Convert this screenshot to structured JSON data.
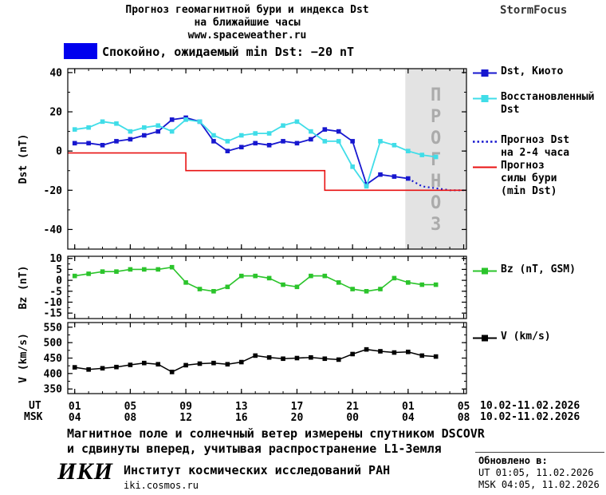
{
  "header": {
    "title_line1": "Прогноз геомагнитной бури и индекса Dst",
    "title_line2": "на ближайшие часы",
    "site_url": "www.spaceweather.ru",
    "brand": "StormFocus"
  },
  "status": {
    "text": "Спокойно, ожидаемый min Dst: −20 nT",
    "swatch_color": "#0000ee"
  },
  "chart_data": [
    {
      "id": "dst",
      "type": "line",
      "ylabel": "Dst (nT)",
      "ylim": [
        -50,
        42
      ],
      "yticks": [
        40,
        20,
        0,
        -20,
        -40
      ],
      "yminor": 10,
      "xlim": [
        0.5,
        29.2
      ],
      "xticks": [
        1,
        5,
        9,
        13,
        17,
        21,
        25,
        29
      ],
      "forecast_region": {
        "x_start": 24.8,
        "x_end": 29.2,
        "label": "ПРОГНОЗ",
        "fill": "#e3e3e3",
        "text_color": "#ababab"
      },
      "series": [
        {
          "name": "Dst, Киото",
          "color": "#1717cf",
          "marker": true,
          "lw": 1.8,
          "x0": 1,
          "dx": 1,
          "values": [
            4,
            4,
            3,
            5,
            6,
            8,
            10,
            16,
            17,
            15,
            5,
            0,
            2,
            4,
            3,
            5,
            4,
            6,
            11,
            10,
            5,
            -17,
            -12,
            -13,
            -14
          ]
        },
        {
          "name": "Восстановленный Dst",
          "color": "#40dde8",
          "marker": true,
          "lw": 1.8,
          "x0": 1,
          "dx": 1,
          "values": [
            11,
            12,
            15,
            14,
            10,
            12,
            13,
            10,
            16,
            15,
            8,
            5,
            8,
            9,
            9,
            13,
            15,
            10,
            5,
            5,
            -8,
            -18,
            5,
            3,
            0,
            -2,
            -3
          ]
        },
        {
          "name": "Прогноз Dst на 2-4 часа",
          "color": "#1717cf",
          "marker": false,
          "lw": 2.2,
          "dash": "2,3.5",
          "x": [
            25,
            26,
            27,
            28,
            29
          ],
          "values": [
            -14,
            -18,
            -19,
            -20,
            -20
          ]
        },
        {
          "name": "Прогноз силы бури (min Dst)",
          "color": "#e81212",
          "marker": false,
          "lw": 1.6,
          "x": [
            0.5,
            9,
            9,
            19,
            19,
            29.2
          ],
          "values": [
            -1,
            -1,
            -10,
            -10,
            -20,
            -20
          ]
        }
      ]
    },
    {
      "id": "bz",
      "type": "line",
      "ylabel": "Bz (nT)",
      "ylim": [
        -17.5,
        11
      ],
      "yticks": [
        10,
        5,
        0,
        -5,
        -10,
        -15
      ],
      "yminor": 2.5,
      "xlim": [
        0.5,
        29.2
      ],
      "xticks": [
        1,
        5,
        9,
        13,
        17,
        21,
        25,
        29
      ],
      "series": [
        {
          "name": "Bz (nT, GSM)",
          "color": "#2bc42b",
          "marker": true,
          "lw": 1.6,
          "x0": 1,
          "dx": 1,
          "values": [
            2,
            3,
            4,
            4,
            5,
            5,
            5,
            6,
            -1,
            -4,
            -5,
            -3,
            2,
            2,
            1,
            -2,
            -3,
            2,
            2,
            -1,
            -4,
            -5,
            -4,
            1,
            -1,
            -2,
            -2
          ]
        }
      ]
    },
    {
      "id": "v",
      "type": "line",
      "ylabel": "V (km/s)",
      "ylim": [
        335,
        565
      ],
      "yticks": [
        550,
        500,
        450,
        400,
        350
      ],
      "yminor": 25,
      "xlim": [
        0.5,
        29.2
      ],
      "xticks": [
        1,
        5,
        9,
        13,
        17,
        21,
        25,
        29
      ],
      "series": [
        {
          "name": "V (km/s)",
          "color": "#000000",
          "marker": true,
          "lw": 1.5,
          "x0": 1,
          "dx": 1,
          "values": [
            420,
            413,
            417,
            421,
            428,
            434,
            430,
            405,
            427,
            432,
            434,
            430,
            437,
            458,
            452,
            448,
            450,
            452,
            448,
            445,
            463,
            478,
            472,
            468,
            470,
            458,
            455
          ]
        }
      ]
    }
  ],
  "x_axis": {
    "ut_label": "UT",
    "msk_label": "MSK",
    "tick_hours": [
      1,
      5,
      9,
      13,
      17,
      21,
      25,
      29
    ],
    "ut_ticks": [
      "01",
      "05",
      "09",
      "13",
      "17",
      "21",
      "01",
      "05"
    ],
    "msk_ticks": [
      "04",
      "08",
      "12",
      "16",
      "20",
      "00",
      "04",
      "08"
    ],
    "date_range": "10.02-11.02.2026"
  },
  "legend": {
    "kyoto": [
      "Dst, Киото"
    ],
    "restored": [
      "Восстановленный",
      "Dst"
    ],
    "forecast_dst": [
      "Прогноз Dst",
      "на 2-4 часа"
    ],
    "storm": [
      "Прогноз",
      "силы бури",
      "(min Dst)"
    ],
    "bz": [
      "Bz (nT, GSM)"
    ],
    "v": [
      "V (km/s)"
    ]
  },
  "notes": {
    "line1": "Магнитное поле и солнечный ветер измерены спутником DSCOVR",
    "line2": "и сдвинуты вперед, учитывая распространение L1-Земля"
  },
  "footer": {
    "logo": "ИКИ",
    "institute": "Институт космических исследований РАН",
    "site_url": "iki.cosmos.ru",
    "updated_label": "Обновлено в:",
    "updated_ut": "UT  01:05, 11.02.2026",
    "updated_msk": "MSK 04:05, 11.02.2026"
  }
}
